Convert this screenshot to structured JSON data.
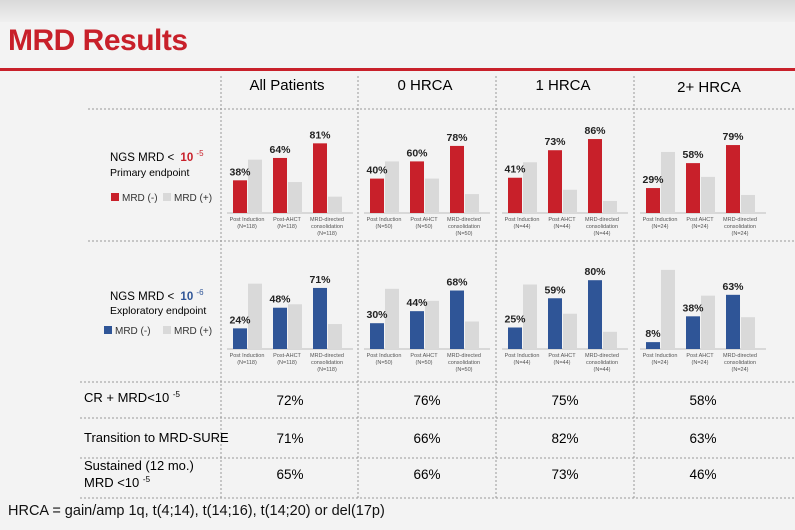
{
  "page": {
    "title": "MRD Results",
    "footer": "HRCA = gain/amp 1q, t(4;14), t(14;16), t(14;20) or del(17p)"
  },
  "groups": [
    "All Patients",
    "0 HRCA",
    "1 HRCA",
    "2+ HRCA"
  ],
  "rows": {
    "primary": {
      "label_prefix": "NGS MRD <",
      "threshold_base": "10",
      "threshold_exp": "-5",
      "subtitle": "Primary endpoint",
      "legend_neg": "MRD (-)",
      "legend_pos": "MRD (+)"
    },
    "exploratory": {
      "label_prefix": "NGS MRD <",
      "threshold_base": "10",
      "threshold_exp": "-6",
      "subtitle": "Exploratory endpoint",
      "legend_neg": "MRD (-)",
      "legend_pos": "MRD (+)"
    }
  },
  "colors": {
    "red": "#c8202a",
    "blue": "#2f5597",
    "grey": "#d9d9d9"
  },
  "chart_data": [
    {
      "type": "bar",
      "row": "primary",
      "group": "All Patients",
      "categories": [
        "Post Induction",
        "Post-AHCT",
        "MRD-directed consolidation"
      ],
      "n_labels": [
        "(N=118)",
        "(N=118)",
        "(N=118)"
      ],
      "series": [
        {
          "name": "MRD (-)",
          "values": [
            38,
            64,
            81
          ]
        },
        {
          "name": "MRD (+)",
          "values": [
            62,
            36,
            19
          ]
        }
      ],
      "value_labels": [
        "38%",
        "64%",
        "81%"
      ],
      "ylim": [
        0,
        100
      ]
    },
    {
      "type": "bar",
      "row": "primary",
      "group": "0 HRCA",
      "categories": [
        "Post Induction",
        "Post AHCT",
        "MRD-directed consolidation"
      ],
      "n_labels": [
        "(N=50)",
        "(N=50)",
        "(N=50)"
      ],
      "series": [
        {
          "name": "MRD (-)",
          "values": [
            40,
            60,
            78
          ]
        },
        {
          "name": "MRD (+)",
          "values": [
            60,
            40,
            22
          ]
        }
      ],
      "value_labels": [
        "40%",
        "60%",
        "78%"
      ],
      "ylim": [
        0,
        100
      ]
    },
    {
      "type": "bar",
      "row": "primary",
      "group": "1 HRCA",
      "categories": [
        "Post Induction",
        "Post AHCT",
        "MRD-directed consolidation"
      ],
      "n_labels": [
        "(N=44)",
        "(N=44)",
        "(N=44)"
      ],
      "series": [
        {
          "name": "MRD (-)",
          "values": [
            41,
            73,
            86
          ]
        },
        {
          "name": "MRD (+)",
          "values": [
            59,
            27,
            14
          ]
        }
      ],
      "value_labels": [
        "41%",
        "73%",
        "86%"
      ],
      "ylim": [
        0,
        100
      ]
    },
    {
      "type": "bar",
      "row": "primary",
      "group": "2+ HRCA",
      "categories": [
        "Post Induction",
        "Post AHCT",
        "MRD-directed consolidation"
      ],
      "n_labels": [
        "(N=24)",
        "(N=24)",
        "(N=24)"
      ],
      "series": [
        {
          "name": "MRD (-)",
          "values": [
            29,
            58,
            79
          ]
        },
        {
          "name": "MRD (+)",
          "values": [
            71,
            42,
            21
          ]
        }
      ],
      "value_labels": [
        "29%",
        "58%",
        "79%"
      ],
      "ylim": [
        0,
        100
      ]
    },
    {
      "type": "bar",
      "row": "exploratory",
      "group": "All Patients",
      "categories": [
        "Post Induction",
        "Post-AHCT",
        "MRD-directed consolidation"
      ],
      "n_labels": [
        "(N=118)",
        "(N=118)",
        "(N=118)"
      ],
      "series": [
        {
          "name": "MRD (-)",
          "values": [
            24,
            48,
            71
          ]
        },
        {
          "name": "MRD (+)",
          "values": [
            76,
            52,
            29
          ]
        }
      ],
      "value_labels": [
        "24%",
        "48%",
        "71%"
      ],
      "ylim": [
        0,
        100
      ]
    },
    {
      "type": "bar",
      "row": "exploratory",
      "group": "0 HRCA",
      "categories": [
        "Post Induction",
        "Post AHCT",
        "MRD-directed consolidation"
      ],
      "n_labels": [
        "(N=50)",
        "(N=50)",
        "(N=50)"
      ],
      "series": [
        {
          "name": "MRD (-)",
          "values": [
            30,
            44,
            68
          ]
        },
        {
          "name": "MRD (+)",
          "values": [
            70,
            56,
            32
          ]
        }
      ],
      "value_labels": [
        "30%",
        "44%",
        "68%"
      ],
      "ylim": [
        0,
        100
      ]
    },
    {
      "type": "bar",
      "row": "exploratory",
      "group": "1 HRCA",
      "categories": [
        "Post Induction",
        "Post AHCT",
        "MRD-directed consolidation"
      ],
      "n_labels": [
        "(N=44)",
        "(N=44)",
        "(N=44)"
      ],
      "series": [
        {
          "name": "MRD (-)",
          "values": [
            25,
            59,
            80
          ]
        },
        {
          "name": "MRD (+)",
          "values": [
            75,
            41,
            20
          ]
        }
      ],
      "value_labels": [
        "25%",
        "59%",
        "80%"
      ],
      "ylim": [
        0,
        100
      ]
    },
    {
      "type": "bar",
      "row": "exploratory",
      "group": "2+ HRCA",
      "categories": [
        "Post Induction",
        "Post AHCT",
        "MRD-directed consolidation"
      ],
      "n_labels": [
        "(N=24)",
        "(N=24)",
        "(N=24)"
      ],
      "series": [
        {
          "name": "MRD (-)",
          "values": [
            8,
            38,
            63
          ]
        },
        {
          "name": "MRD (+)",
          "values": [
            92,
            62,
            37
          ]
        }
      ],
      "value_labels": [
        "8%",
        "38%",
        "63%"
      ],
      "ylim": [
        0,
        100
      ]
    }
  ],
  "summary_table": [
    {
      "label": [
        "CR + MRD<10",
        "-5",
        ""
      ],
      "values": [
        "72%",
        "76%",
        "75%",
        "58%"
      ]
    },
    {
      "label": [
        "Transition to MRD-SURE",
        "",
        ""
      ],
      "values": [
        "71%",
        "66%",
        "82%",
        "63%"
      ]
    },
    {
      "label": [
        "Sustained (12 mo.)",
        "MRD <10",
        "-5"
      ],
      "values": [
        "65%",
        "66%",
        "73%",
        "46%"
      ]
    }
  ]
}
